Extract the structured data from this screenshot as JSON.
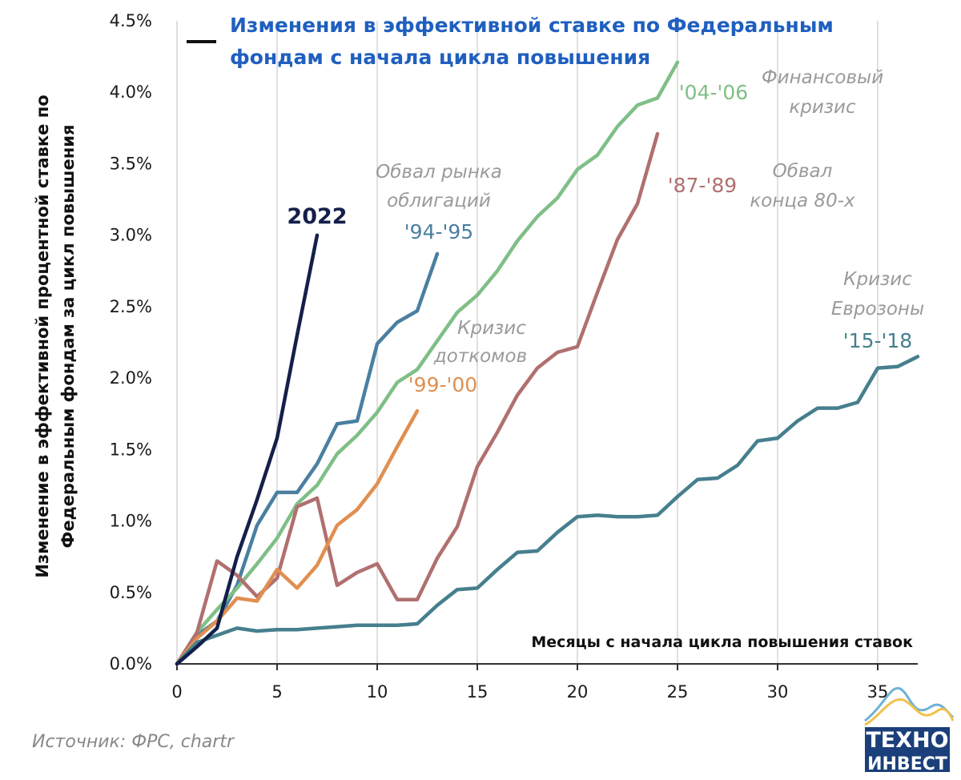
{
  "chart_data": {
    "type": "line",
    "title": [
      "Изменения в эффективной ставке по Федеральным",
      "фондам с начала цикла повышения"
    ],
    "ylabel": [
      "Изменение в эффективной процентной ставке по",
      "Федеральным фондам за цикл повышения"
    ],
    "xlabel": "Месяцы с начала цикла повышения ставок",
    "xlim": [
      0,
      37
    ],
    "ylim": [
      0,
      4.5
    ],
    "xticks": [
      "0",
      "5",
      "10",
      "15",
      "20",
      "25",
      "30",
      "35"
    ],
    "yticks": [
      "0.0%",
      "0.5%",
      "1.0%",
      "1.5%",
      "2.0%",
      "2.5%",
      "3.0%",
      "3.5%",
      "4.0%",
      "4.5%"
    ],
    "grid": "vertical",
    "series": [
      {
        "name": "2022",
        "color": "#14204a",
        "x": [
          0,
          1,
          2,
          3,
          4,
          5,
          6,
          7
        ],
        "y": [
          0,
          0.12,
          0.25,
          0.75,
          1.15,
          1.58,
          2.3,
          3.0
        ]
      },
      {
        "name": "'94-'95",
        "color": "#4a7fa0",
        "x": [
          0,
          1,
          2,
          3,
          4,
          5,
          6,
          7,
          8,
          9,
          10,
          11,
          12,
          13
        ],
        "y": [
          0,
          0.2,
          0.3,
          0.55,
          0.97,
          1.2,
          1.2,
          1.4,
          1.68,
          1.7,
          2.24,
          2.39,
          2.47,
          2.87
        ]
      },
      {
        "name": "'04-'06",
        "color": "#7fbf86",
        "x": [
          0,
          1,
          2,
          3,
          4,
          5,
          6,
          7,
          8,
          9,
          10,
          11,
          12,
          13,
          14,
          15,
          16,
          17,
          18,
          19,
          20,
          21,
          22,
          23,
          24,
          25
        ],
        "y": [
          0,
          0.22,
          0.38,
          0.53,
          0.7,
          0.88,
          1.12,
          1.25,
          1.47,
          1.6,
          1.76,
          1.97,
          2.06,
          2.26,
          2.46,
          2.58,
          2.75,
          2.96,
          3.13,
          3.26,
          3.46,
          3.56,
          3.76,
          3.91,
          3.96,
          4.21
        ]
      },
      {
        "name": "'87-'89",
        "color": "#b0706f",
        "x": [
          0,
          1,
          2,
          3,
          4,
          5,
          6,
          7,
          8,
          9,
          10,
          11,
          12,
          13,
          14,
          15,
          16,
          17,
          18,
          19,
          20,
          21,
          22,
          23,
          24
        ],
        "y": [
          0,
          0.22,
          0.72,
          0.62,
          0.47,
          0.6,
          1.1,
          1.16,
          0.55,
          0.64,
          0.7,
          0.45,
          0.45,
          0.74,
          0.96,
          1.38,
          1.62,
          1.88,
          2.07,
          2.18,
          2.22,
          2.6,
          2.97,
          3.22,
          3.71
        ]
      },
      {
        "name": "'99-'00",
        "color": "#e08f50",
        "x": [
          0,
          1,
          2,
          3,
          4,
          5,
          6,
          7,
          8,
          9,
          10,
          11,
          12
        ],
        "y": [
          0,
          0.18,
          0.3,
          0.46,
          0.44,
          0.66,
          0.53,
          0.69,
          0.97,
          1.08,
          1.26,
          1.52,
          1.77
        ]
      },
      {
        "name": "'15-'18",
        "color": "#467f8e",
        "x": [
          0,
          1,
          2,
          3,
          4,
          5,
          6,
          7,
          8,
          9,
          10,
          11,
          12,
          13,
          14,
          15,
          16,
          17,
          18,
          19,
          20,
          21,
          22,
          23,
          24,
          25,
          26,
          27,
          28,
          29,
          30,
          31,
          32,
          33,
          34,
          35,
          36,
          37
        ],
        "y": [
          0,
          0.15,
          0.2,
          0.25,
          0.23,
          0.24,
          0.24,
          0.25,
          0.26,
          0.27,
          0.27,
          0.27,
          0.28,
          0.41,
          0.52,
          0.53,
          0.66,
          0.78,
          0.79,
          0.92,
          1.03,
          1.04,
          1.03,
          1.03,
          1.04,
          1.17,
          1.29,
          1.3,
          1.39,
          1.56,
          1.58,
          1.7,
          1.79,
          1.79,
          1.83,
          2.07,
          2.08,
          2.15
        ]
      }
    ],
    "annotations": [
      {
        "id": "bonds",
        "text": [
          "Обвал рынка",
          "облигаций"
        ],
        "range": "'94-'95"
      },
      {
        "id": "dotcom",
        "text": [
          "Кризис",
          "доткомов"
        ],
        "range": "'99-'00"
      },
      {
        "id": "financial",
        "text": [
          "Финансовый",
          "кризис"
        ],
        "range": "'04-'06"
      },
      {
        "id": "late80s",
        "text": [
          "Обвал",
          "конца 80-х"
        ],
        "range": "'87-'89"
      },
      {
        "id": "eurozone",
        "text": [
          "Кризис",
          "Еврозоны"
        ],
        "range": "'15-'18"
      },
      {
        "id": "current",
        "text": [],
        "range": "2022"
      }
    ]
  },
  "source": "Источник: ФРС, chartr",
  "logo": {
    "line1": "ТЕХНО",
    "line2": "ИНВЕСТ"
  }
}
